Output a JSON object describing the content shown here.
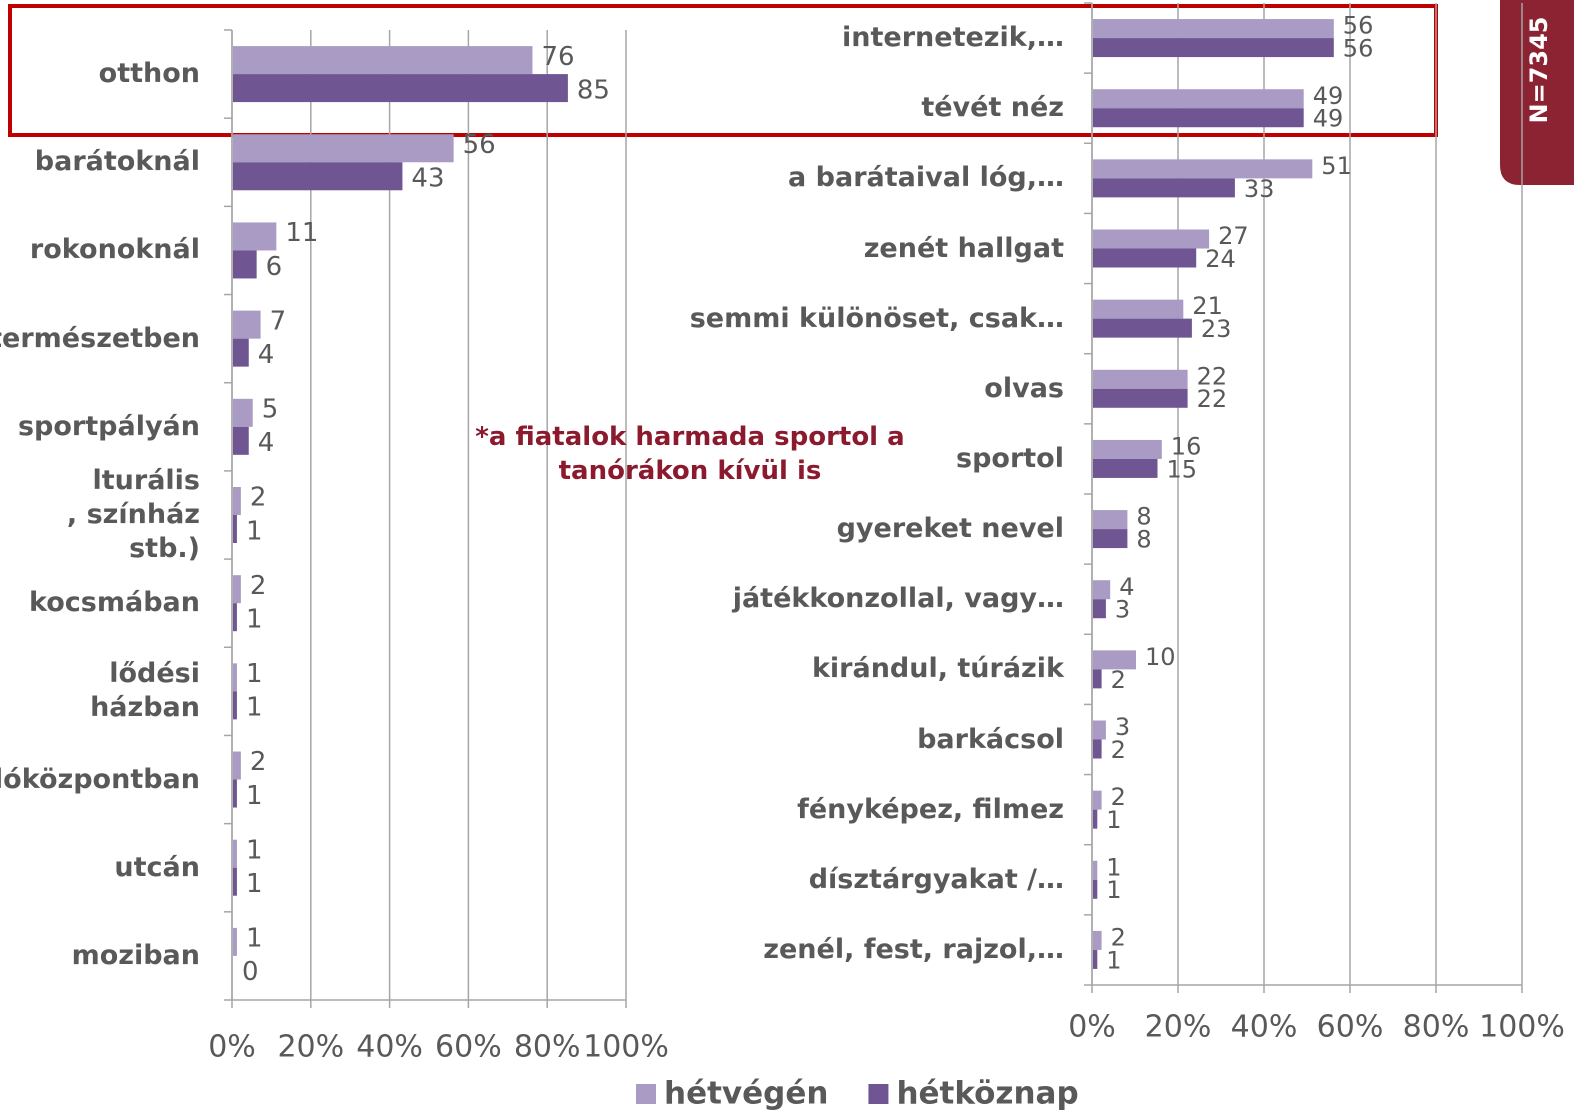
{
  "chart_data": [
    {
      "type": "bar",
      "orientation": "horizontal",
      "categories": [
        "otthon",
        "barátoknál",
        "rokonoknál",
        "természetben",
        "sportpályán",
        "lturális\n, színház stb.)",
        "kocsmában",
        "lődési házban",
        "lóközpontban",
        "utcán",
        "moziban"
      ],
      "series": [
        {
          "name": "hétvégén",
          "color": "#a99bc4",
          "values": [
            76,
            56,
            11,
            7,
            5,
            2,
            2,
            1,
            2,
            1,
            1
          ]
        },
        {
          "name": "hétköznap",
          "color": "#6f5592",
          "values": [
            85,
            43,
            6,
            4,
            4,
            1,
            1,
            1,
            1,
            1,
            0
          ]
        }
      ],
      "xlim": [
        0,
        100
      ],
      "xticks": [
        {
          "value": 0,
          "label": "0%"
        },
        {
          "value": 20,
          "label": "20%"
        },
        {
          "value": 40,
          "label": "40%"
        },
        {
          "value": 60,
          "label": "60%"
        },
        {
          "value": 80,
          "label": "80%"
        },
        {
          "value": 100,
          "label": "100%"
        }
      ],
      "grid": true,
      "annotation": "*a fiatalok harmada sportol a\ntanórákon kívül is"
    },
    {
      "type": "bar",
      "orientation": "horizontal",
      "categories": [
        "internetezik,…",
        "tévét néz",
        "a barátaival lóg,…",
        "zenét hallgat",
        "semmi különöset, csak…",
        "olvas",
        "sportol",
        "gyereket nevel",
        "játékkonzollal, vagy…",
        "kirándul, túrázik",
        "barkácsol",
        "fényképez, filmez",
        "dísztárgyakat /…",
        "zenél, fest, rajzol,…"
      ],
      "series": [
        {
          "name": "hétvégén",
          "color": "#a99bc4",
          "values": [
            56,
            49,
            51,
            27,
            21,
            22,
            16,
            8,
            4,
            10,
            3,
            2,
            1,
            2
          ]
        },
        {
          "name": "hétköznap",
          "color": "#6f5592",
          "values": [
            56,
            49,
            33,
            24,
            23,
            22,
            15,
            8,
            3,
            2,
            2,
            1,
            1,
            1
          ]
        }
      ],
      "xlim": [
        0,
        100
      ],
      "xticks": [
        {
          "value": 0,
          "label": "0%"
        },
        {
          "value": 20,
          "label": "20%"
        },
        {
          "value": 40,
          "label": "40%"
        },
        {
          "value": 60,
          "label": "60%"
        },
        {
          "value": 80,
          "label": "80%"
        },
        {
          "value": 100,
          "label": "100%"
        }
      ],
      "grid": true
    }
  ],
  "sample_size": "N=7345"
}
